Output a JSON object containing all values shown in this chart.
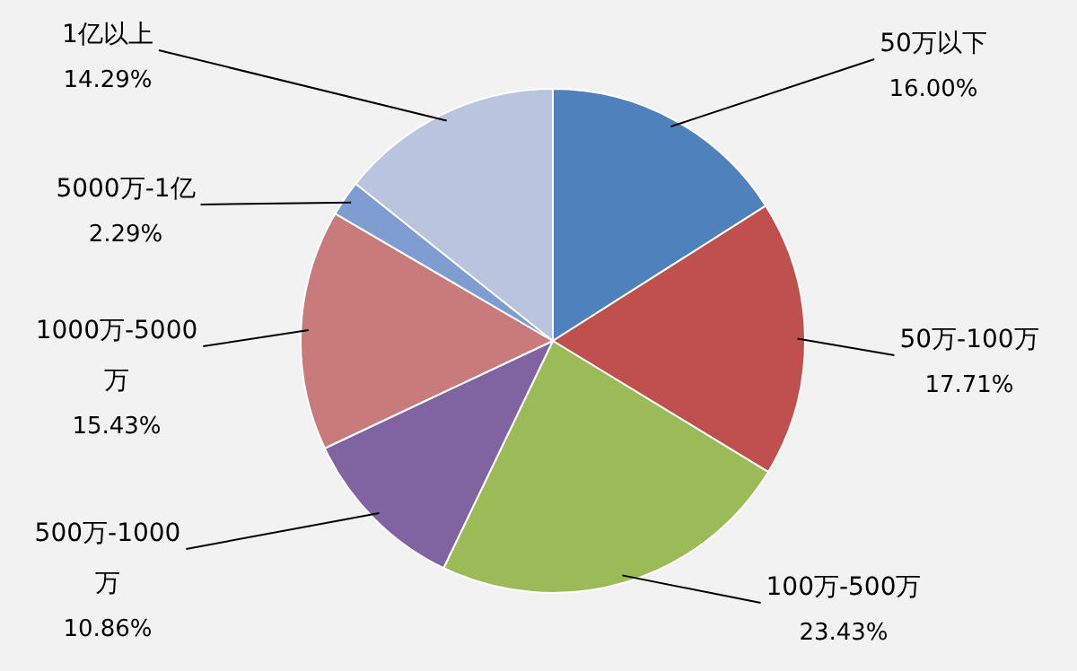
{
  "chart_data": {
    "type": "pie",
    "categories": [
      "50万以下",
      "50万-100万",
      "100万-500万",
      "500万-1000万",
      "1000万-5000万",
      "5000万-1亿",
      "1亿以上"
    ],
    "values": [
      16.0,
      17.71,
      23.43,
      10.86,
      15.43,
      2.29,
      14.29
    ],
    "value_labels": [
      "16.00%",
      "17.71%",
      "23.43%",
      "10.86%",
      "15.43%",
      "2.29%",
      "14.29%"
    ],
    "colors": [
      "#4f81bd",
      "#c0504d",
      "#9bbb59",
      "#8064a2",
      "#c87b7a",
      "#7f9dd0",
      "#b9c4de"
    ],
    "legend": false
  }
}
